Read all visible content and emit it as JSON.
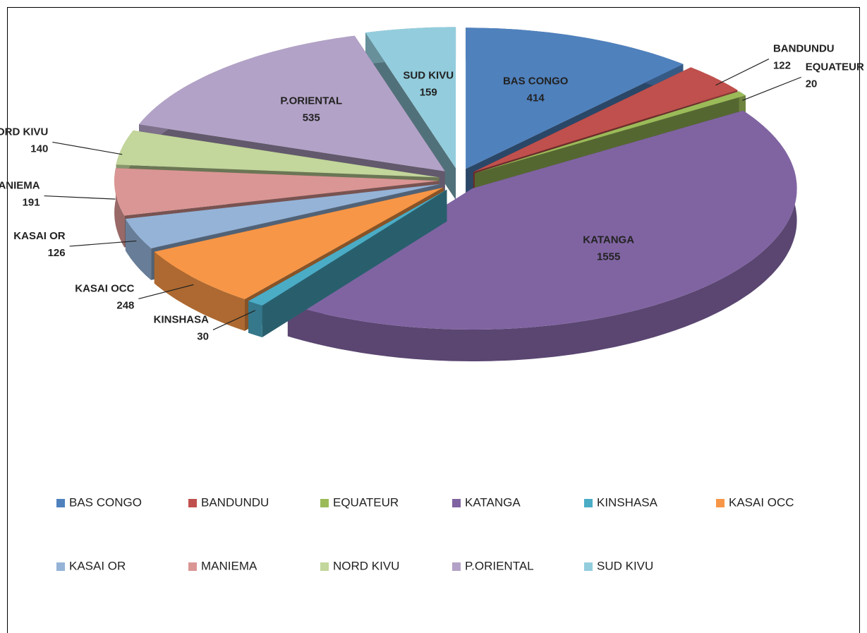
{
  "chart_data": {
    "type": "pie3d",
    "categories": [
      "BAS CONGO",
      "BANDUNDU",
      "EQUATEUR",
      "KATANGA",
      "KINSHASA",
      "KASAI OCC",
      "KASAI OR",
      "MANIEMA",
      "NORD KIVU",
      "P.ORIENTAL",
      "SUD KIVU"
    ],
    "values": [
      414,
      122,
      20,
      1555,
      30,
      248,
      126,
      191,
      140,
      535,
      159
    ],
    "colors": [
      "#4f81bd",
      "#c0504d",
      "#9bbb59",
      "#8064a2",
      "#4bacc6",
      "#f79646",
      "#95b3d7",
      "#da9694",
      "#c3d69b",
      "#b3a2c7",
      "#93cddd"
    ],
    "legend": "bottom"
  }
}
